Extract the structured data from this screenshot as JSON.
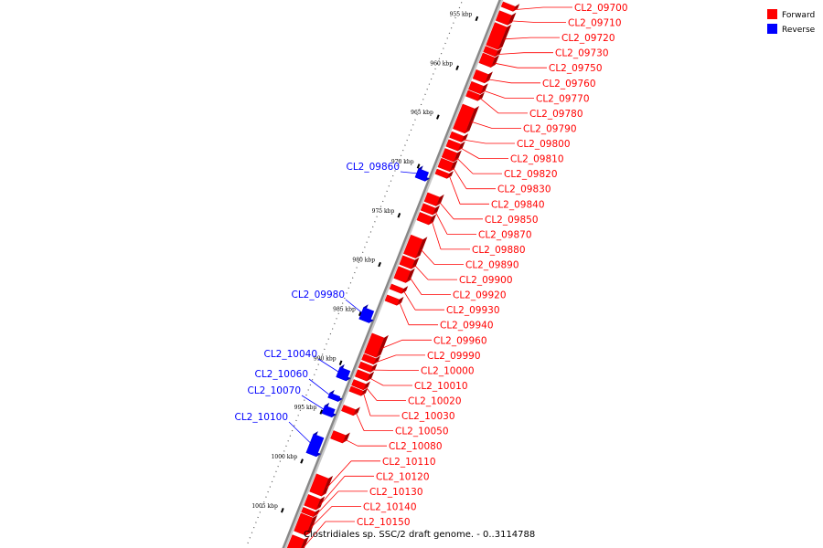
{
  "caption": "Clostridiales sp. SSC/2 draft genome. - 0..3114788",
  "legend": {
    "forward": {
      "label": "Forward",
      "color": "#ff0000"
    },
    "reverse": {
      "label": "Reverse",
      "color": "#0000ff"
    }
  },
  "ticks": [
    {
      "label": "955 kbp",
      "pos": 955
    },
    {
      "label": "960 kbp",
      "pos": 960
    },
    {
      "label": "965 kbp",
      "pos": 965
    },
    {
      "label": "970 kbp",
      "pos": 970
    },
    {
      "label": "975 kbp",
      "pos": 975
    },
    {
      "label": "980 kbp",
      "pos": 980
    },
    {
      "label": "985 kbp",
      "pos": 985
    },
    {
      "label": "990 kbp",
      "pos": 990
    },
    {
      "label": "995 kbp",
      "pos": 995
    },
    {
      "label": "1000 kbp",
      "pos": 1000
    },
    {
      "label": "1005 kbp",
      "pos": 1005
    }
  ],
  "genes": [
    {
      "name": "CL2_09700",
      "strand": "forward",
      "start": 952.6,
      "end": 953.1
    },
    {
      "name": "CL2_09710",
      "strand": "forward",
      "start": 953.5,
      "end": 954.5
    },
    {
      "name": "CL2_09720",
      "strand": "forward",
      "start": 954.7,
      "end": 957.0
    },
    {
      "name": "CL2_09730",
      "strand": "forward",
      "start": 957.1,
      "end": 957.7
    },
    {
      "name": "CL2_09750",
      "strand": "forward",
      "start": 957.8,
      "end": 958.8
    },
    {
      "name": "CL2_09760",
      "strand": "forward",
      "start": 959.5,
      "end": 960.4
    },
    {
      "name": "CL2_09770",
      "strand": "forward",
      "start": 960.7,
      "end": 961.5
    },
    {
      "name": "CL2_09780",
      "strand": "forward",
      "start": 961.6,
      "end": 962.2
    },
    {
      "name": "CL2_09790",
      "strand": "forward",
      "start": 963.0,
      "end": 965.5
    },
    {
      "name": "CL2_09800",
      "strand": "forward",
      "start": 965.8,
      "end": 966.4
    },
    {
      "name": "CL2_09810",
      "strand": "forward",
      "start": 966.6,
      "end": 967.3
    },
    {
      "name": "CL2_09820",
      "strand": "forward",
      "start": 967.5,
      "end": 968.4
    },
    {
      "name": "CL2_09830",
      "strand": "forward",
      "start": 968.5,
      "end": 969.4
    },
    {
      "name": "CL2_09840",
      "strand": "forward",
      "start": 969.6,
      "end": 970.1
    },
    {
      "name": "CL2_09860",
      "strand": "reverse",
      "start": 970.2,
      "end": 971.1
    },
    {
      "name": "CL2_09850",
      "strand": "forward",
      "start": 972.0,
      "end": 972.9
    },
    {
      "name": "CL2_09870",
      "strand": "forward",
      "start": 973.1,
      "end": 973.8
    },
    {
      "name": "CL2_09880",
      "strand": "forward",
      "start": 974.0,
      "end": 974.8
    },
    {
      "name": "CL2_09890",
      "strand": "forward",
      "start": 976.3,
      "end": 978.2
    },
    {
      "name": "CL2_09900",
      "strand": "forward",
      "start": 978.4,
      "end": 979.3
    },
    {
      "name": "CL2_09920",
      "strand": "forward",
      "start": 979.5,
      "end": 980.7
    },
    {
      "name": "CL2_09930",
      "strand": "forward",
      "start": 981.3,
      "end": 981.8
    },
    {
      "name": "CL2_09940",
      "strand": "forward",
      "start": 982.4,
      "end": 983.0
    },
    {
      "name": "CL2_09980",
      "strand": "reverse",
      "start": 984.3,
      "end": 985.5
    },
    {
      "name": "CL2_09960",
      "strand": "forward",
      "start": 986.3,
      "end": 988.3
    },
    {
      "name": "CL2_09990",
      "strand": "forward",
      "start": 988.4,
      "end": 989.0
    },
    {
      "name": "CL2_10000",
      "strand": "forward",
      "start": 989.2,
      "end": 989.8
    },
    {
      "name": "CL2_10010",
      "strand": "forward",
      "start": 990.0,
      "end": 990.7
    },
    {
      "name": "CL2_10040",
      "strand": "reverse",
      "start": 990.4,
      "end": 991.4
    },
    {
      "name": "CL2_10020",
      "strand": "forward",
      "start": 991.0,
      "end": 991.6
    },
    {
      "name": "CL2_10030",
      "strand": "forward",
      "start": 991.7,
      "end": 992.2
    },
    {
      "name": "CL2_10060",
      "strand": "reverse",
      "start": 993.0,
      "end": 993.5
    },
    {
      "name": "CL2_10050",
      "strand": "forward",
      "start": 993.6,
      "end": 994.2
    },
    {
      "name": "CL2_10070",
      "strand": "reverse",
      "start": 994.3,
      "end": 995.1
    },
    {
      "name": "CL2_10080",
      "strand": "forward",
      "start": 996.2,
      "end": 997.0
    },
    {
      "name": "CL2_10100",
      "strand": "reverse",
      "start": 997.2,
      "end": 999.1
    },
    {
      "name": "CL2_10110",
      "strand": "forward",
      "start": 1000.6,
      "end": 1002.4
    },
    {
      "name": "CL2_10120",
      "strand": "forward",
      "start": 1002.7,
      "end": 1003.8
    },
    {
      "name": "CL2_10130",
      "strand": "forward",
      "start": 1004.0,
      "end": 1004.5
    },
    {
      "name": "CL2_10140",
      "strand": "forward",
      "start": 1004.6,
      "end": 1006.4
    },
    {
      "name": "CL2_10150",
      "strand": "forward",
      "start": 1006.8,
      "end": 1008.5
    }
  ]
}
